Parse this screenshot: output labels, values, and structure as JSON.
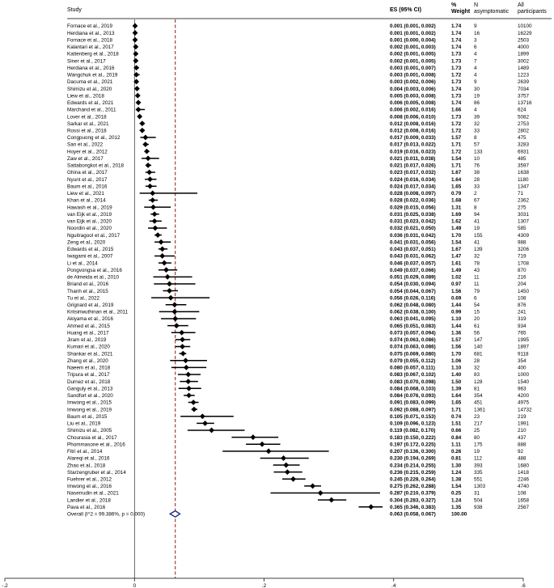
{
  "chart_data": {
    "type": "forest",
    "columns": {
      "study": "Study",
      "es": "ES (95% CI)",
      "weight": [
        "%",
        "Weight"
      ],
      "n": [
        "N",
        "asymptomatic"
      ],
      "all": [
        "All",
        "participants"
      ]
    },
    "x_axis": {
      "ticks": [
        -0.2,
        0,
        0.2,
        0.4,
        0.6
      ],
      "tick_labels": [
        "-.2",
        "0",
        ".2",
        ".4",
        ".6"
      ],
      "range": [
        -0.2,
        0.6
      ]
    },
    "reference_line": 0.063,
    "colors": {
      "marker": "#000000",
      "reference": "#8b1a1a",
      "overall": "#1f2a8a"
    },
    "studies": [
      {
        "study": "Fornace et al., 2019",
        "es": 0.001,
        "lo": 0.001,
        "hi": 0.002,
        "es_text": "0.001 (0.001, 0.002)",
        "weight": "1.74",
        "n": "9",
        "all": "10100"
      },
      {
        "study": "Herdiana et al., 2013",
        "es": 0.001,
        "lo": 0.001,
        "hi": 0.002,
        "es_text": "0.001 (0.001, 0.002)",
        "weight": "1.74",
        "n": "16",
        "all": "16229"
      },
      {
        "study": "Fornace et al., 2018",
        "es": 0.001,
        "lo": 0.0,
        "hi": 0.004,
        "es_text": "0.001 (0.000, 0.004)",
        "weight": "1.74",
        "n": "3",
        "all": "2503"
      },
      {
        "study": "Kalantari et al., 2017",
        "es": 0.002,
        "lo": 0.001,
        "hi": 0.003,
        "es_text": "0.002 (0.001, 0.003)",
        "weight": "1.74",
        "n": "6",
        "all": "4000"
      },
      {
        "study": "Kattenberg et al., 2018",
        "es": 0.002,
        "lo": 0.001,
        "hi": 0.005,
        "es_text": "0.002 (0.001, 0.005)",
        "weight": "1.73",
        "n": "4",
        "all": "1899"
      },
      {
        "study": "Siner et al., 2017",
        "es": 0.002,
        "lo": 0.001,
        "hi": 0.005,
        "es_text": "0.002 (0.001, 0.005)",
        "weight": "1.73",
        "n": "7",
        "all": "3002"
      },
      {
        "study": "Herdiana et al., 2016",
        "es": 0.003,
        "lo": 0.001,
        "hi": 0.007,
        "es_text": "0.003 (0.001, 0.007)",
        "weight": "1.73",
        "n": "4",
        "all": "1489"
      },
      {
        "study": "Wangchuk et al., 2019",
        "es": 0.003,
        "lo": 0.001,
        "hi": 0.008,
        "es_text": "0.003 (0.001, 0.008)",
        "weight": "1.72",
        "n": "4",
        "all": "1223"
      },
      {
        "study": "Dacuma et al., 2021",
        "es": 0.003,
        "lo": 0.002,
        "hi": 0.006,
        "es_text": "0.003 (0.002, 0.006)",
        "weight": "1.73",
        "n": "9",
        "all": "2639"
      },
      {
        "study": "Shimizu et al., 2020",
        "es": 0.004,
        "lo": 0.003,
        "hi": 0.006,
        "es_text": "0.004 (0.003, 0.006)",
        "weight": "1.74",
        "n": "30",
        "all": "7034"
      },
      {
        "study": "Liew et al., 2018",
        "es": 0.005,
        "lo": 0.003,
        "hi": 0.008,
        "es_text": "0.005 (0.003, 0.008)",
        "weight": "1.73",
        "n": "19",
        "all": "3757"
      },
      {
        "study": "Edwards et al., 2021",
        "es": 0.006,
        "lo": 0.005,
        "hi": 0.008,
        "es_text": "0.006 (0.005, 0.008)",
        "weight": "1.74",
        "n": "86",
        "all": "13716"
      },
      {
        "study": "Marchand et al., 2011",
        "es": 0.006,
        "lo": 0.002,
        "hi": 0.016,
        "es_text": "0.006 (0.002, 0.016)",
        "weight": "1.66",
        "n": "4",
        "all": "624"
      },
      {
        "study": "Lover et al., 2018",
        "es": 0.008,
        "lo": 0.006,
        "hi": 0.01,
        "es_text": "0.008 (0.006, 0.010)",
        "weight": "1.73",
        "n": "39",
        "all": "5082"
      },
      {
        "study": "Sarkar et al., 2021",
        "es": 0.012,
        "lo": 0.008,
        "hi": 0.016,
        "es_text": "0.012 (0.008, 0.016)",
        "weight": "1.72",
        "n": "32",
        "all": "2753"
      },
      {
        "study": "Rossi et al., 2018",
        "es": 0.012,
        "lo": 0.008,
        "hi": 0.016,
        "es_text": "0.012 (0.008, 0.016)",
        "weight": "1.72",
        "n": "33",
        "all": "2802"
      },
      {
        "study": "Congpuong et al., 2012",
        "es": 0.017,
        "lo": 0.009,
        "hi": 0.033,
        "es_text": "0.017 (0.009, 0.033)",
        "weight": "1.57",
        "n": "8",
        "all": "475"
      },
      {
        "study": "San et al., 2022",
        "es": 0.017,
        "lo": 0.013,
        "hi": 0.022,
        "es_text": "0.017 (0.013, 0.022)",
        "weight": "1.71",
        "n": "57",
        "all": "3283"
      },
      {
        "study": "Hoyer et al., 2012",
        "es": 0.019,
        "lo": 0.016,
        "hi": 0.023,
        "es_text": "0.019 (0.016, 0.023)",
        "weight": "1.72",
        "n": "133",
        "all": "6931"
      },
      {
        "study": "Zaw et al., 2017",
        "es": 0.021,
        "lo": 0.011,
        "hi": 0.038,
        "es_text": "0.021 (0.011, 0.038)",
        "weight": "1.54",
        "n": "10",
        "all": "485"
      },
      {
        "study": "Sattabongkot et al., 2018",
        "es": 0.021,
        "lo": 0.017,
        "hi": 0.026,
        "es_text": "0.021 (0.017, 0.026)",
        "weight": "1.71",
        "n": "76",
        "all": "3597"
      },
      {
        "study": "Ghina et al., 2017",
        "es": 0.023,
        "lo": 0.017,
        "hi": 0.032,
        "es_text": "0.023 (0.017, 0.032)",
        "weight": "1.67",
        "n": "38",
        "all": "1638"
      },
      {
        "study": "Nyunt et al., 2017",
        "es": 0.024,
        "lo": 0.016,
        "hi": 0.034,
        "es_text": "0.024 (0.016, 0.034)",
        "weight": "1.64",
        "n": "28",
        "all": "1180"
      },
      {
        "study": "Baum et al., 2016",
        "es": 0.024,
        "lo": 0.017,
        "hi": 0.034,
        "es_text": "0.024 (0.017, 0.034)",
        "weight": "1.65",
        "n": "33",
        "all": "1347"
      },
      {
        "study": "Liew et al., 2021",
        "es": 0.028,
        "lo": 0.008,
        "hi": 0.097,
        "es_text": "0.028 (0.008, 0.097)",
        "weight": "0.79",
        "n": "2",
        "all": "71"
      },
      {
        "study": "Khan et al., 2014",
        "es": 0.028,
        "lo": 0.022,
        "hi": 0.036,
        "es_text": "0.028 (0.022, 0.036)",
        "weight": "1.68",
        "n": "67",
        "all": "2362"
      },
      {
        "study": "Hawash et al., 2019",
        "es": 0.029,
        "lo": 0.015,
        "hi": 0.056,
        "es_text": "0.029 (0.015, 0.056)",
        "weight": "1.31",
        "n": "8",
        "all": "275"
      },
      {
        "study": "van Eijk et al., 2019",
        "es": 0.031,
        "lo": 0.025,
        "hi": 0.038,
        "es_text": "0.031 (0.025, 0.038)",
        "weight": "1.69",
        "n": "94",
        "all": "3031"
      },
      {
        "study": "van Eijk et al., 2020",
        "es": 0.031,
        "lo": 0.023,
        "hi": 0.042,
        "es_text": "0.031 (0.023, 0.042)",
        "weight": "1.62",
        "n": "41",
        "all": "1307"
      },
      {
        "study": "Noordin et al., 2020",
        "es": 0.032,
        "lo": 0.021,
        "hi": 0.05,
        "es_text": "0.032 (0.021, 0.050)",
        "weight": "1.49",
        "n": "19",
        "all": "585"
      },
      {
        "study": "Nguitragool et al., 2017",
        "es": 0.036,
        "lo": 0.031,
        "hi": 0.042,
        "es_text": "0.036 (0.031, 0.042)",
        "weight": "1.70",
        "n": "155",
        "all": "4309"
      },
      {
        "study": "Zeng et al., 2020",
        "es": 0.041,
        "lo": 0.031,
        "hi": 0.056,
        "es_text": "0.041 (0.031, 0.056)",
        "weight": "1.54",
        "n": "41",
        "all": "988"
      },
      {
        "study": "Edwards et al., 2015",
        "es": 0.043,
        "lo": 0.037,
        "hi": 0.051,
        "es_text": "0.043 (0.037, 0.051)",
        "weight": "1.67",
        "n": "139",
        "all": "3206"
      },
      {
        "study": "Iwagami et al., 2007",
        "es": 0.043,
        "lo": 0.031,
        "hi": 0.062,
        "es_text": "0.043 (0.031, 0.062)",
        "weight": "1.47",
        "n": "32",
        "all": "719"
      },
      {
        "study": "Li et al., 2014",
        "es": 0.046,
        "lo": 0.037,
        "hi": 0.057,
        "es_text": "0.046 (0.037, 0.057)",
        "weight": "1.61",
        "n": "78",
        "all": "1708"
      },
      {
        "study": "Pongvongsa et al., 2016",
        "es": 0.049,
        "lo": 0.037,
        "hi": 0.066,
        "es_text": "0.049 (0.037, 0.066)",
        "weight": "1.49",
        "n": "43",
        "all": "870"
      },
      {
        "study": "de Almeida et al., 2010",
        "es": 0.051,
        "lo": 0.029,
        "hi": 0.089,
        "es_text": "0.051 (0.029, 0.089)",
        "weight": "1.02",
        "n": "11",
        "all": "216"
      },
      {
        "study": "Briand et al., 2016",
        "es": 0.054,
        "lo": 0.03,
        "hi": 0.094,
        "es_text": "0.054 (0.030, 0.094)",
        "weight": "0.97",
        "n": "11",
        "all": "204"
      },
      {
        "study": "Thanh et al., 2015",
        "es": 0.054,
        "lo": 0.044,
        "hi": 0.067,
        "es_text": "0.054 (0.044, 0.067)",
        "weight": "1.56",
        "n": "79",
        "all": "1450"
      },
      {
        "study": "Tu et al., 2022",
        "es": 0.056,
        "lo": 0.026,
        "hi": 0.116,
        "es_text": "0.056 (0.026, 0.116)",
        "weight": "0.69",
        "n": "6",
        "all": "108"
      },
      {
        "study": "Grignard et al., 2019",
        "es": 0.062,
        "lo": 0.048,
        "hi": 0.08,
        "es_text": "0.062 (0.048, 0.080)",
        "weight": "1.44",
        "n": "54",
        "all": "876"
      },
      {
        "study": "Kritsiriwuthinan et al., 2011",
        "es": 0.062,
        "lo": 0.038,
        "hi": 0.1,
        "es_text": "0.062 (0.038, 0.100)",
        "weight": "0.99",
        "n": "15",
        "all": "241"
      },
      {
        "study": "Akiyama et al., 2016",
        "es": 0.063,
        "lo": 0.041,
        "hi": 0.095,
        "es_text": "0.063 (0.041, 0.095)",
        "weight": "1.10",
        "n": "20",
        "all": "319"
      },
      {
        "study": "Ahmed et al., 2015",
        "es": 0.065,
        "lo": 0.051,
        "hi": 0.083,
        "es_text": "0.065 (0.051, 0.083)",
        "weight": "1.44",
        "n": "61",
        "all": "934"
      },
      {
        "study": "Huang et al., 2017",
        "es": 0.073,
        "lo": 0.057,
        "hi": 0.094,
        "es_text": "0.073 (0.057, 0.094)",
        "weight": "1.36",
        "n": "56",
        "all": "765"
      },
      {
        "study": "Jiram et al., 2019",
        "es": 0.074,
        "lo": 0.063,
        "hi": 0.086,
        "es_text": "0.074 (0.063, 0.086)",
        "weight": "1.57",
        "n": "147",
        "all": "1995"
      },
      {
        "study": "Kumari et al., 2020",
        "es": 0.074,
        "lo": 0.063,
        "hi": 0.086,
        "es_text": "0.074 (0.063, 0.086)",
        "weight": "1.56",
        "n": "140",
        "all": "1897"
      },
      {
        "study": "Shankar et al., 2021",
        "es": 0.075,
        "lo": 0.069,
        "hi": 0.08,
        "es_text": "0.075 (0.069, 0.080)",
        "weight": "1.70",
        "n": "681",
        "all": "9118"
      },
      {
        "study": "Zhang et al., 2020",
        "es": 0.079,
        "lo": 0.055,
        "hi": 0.112,
        "es_text": "0.079 (0.055, 0.112)",
        "weight": "1.06",
        "n": "28",
        "all": "354"
      },
      {
        "study": "Naeem et al., 2018",
        "es": 0.08,
        "lo": 0.057,
        "hi": 0.111,
        "es_text": "0.080 (0.057, 0.111)",
        "weight": "1.10",
        "n": "32",
        "all": "400"
      },
      {
        "study": "Tripura et al., 2017",
        "es": 0.083,
        "lo": 0.067,
        "hi": 0.102,
        "es_text": "0.083 (0.067, 0.102)",
        "weight": "1.40",
        "n": "83",
        "all": "1000"
      },
      {
        "study": "Durnez et al., 2018",
        "es": 0.083,
        "lo": 0.07,
        "hi": 0.098,
        "es_text": "0.083 (0.070, 0.098)",
        "weight": "1.50",
        "n": "128",
        "all": "1540"
      },
      {
        "study": "Ganguly et al., 2013",
        "es": 0.084,
        "lo": 0.068,
        "hi": 0.103,
        "es_text": "0.084 (0.068, 0.103)",
        "weight": "1.39",
        "n": "81",
        "all": "963"
      },
      {
        "study": "Sandfort et al., 2020",
        "es": 0.084,
        "lo": 0.076,
        "hi": 0.093,
        "es_text": "0.084 (0.076, 0.093)",
        "weight": "1.64",
        "n": "354",
        "all": "4200"
      },
      {
        "study": "Imwong et al., 2015",
        "es": 0.091,
        "lo": 0.083,
        "hi": 0.099,
        "es_text": "0.091 (0.083, 0.099)",
        "weight": "1.65",
        "n": "451",
        "all": "4975"
      },
      {
        "study": "Imwong et al., 2019",
        "es": 0.092,
        "lo": 0.088,
        "hi": 0.097,
        "es_text": "0.092 (0.088, 0.097)",
        "weight": "1.71",
        "n": "1361",
        "all": "14732"
      },
      {
        "study": "Baum et al., 2015",
        "es": 0.105,
        "lo": 0.071,
        "hi": 0.153,
        "es_text": "0.105 (0.071, 0.153)",
        "weight": "0.74",
        "n": "23",
        "all": "219"
      },
      {
        "study": "Liu et al., 2019",
        "es": 0.109,
        "lo": 0.096,
        "hi": 0.123,
        "es_text": "0.109 (0.096, 0.123)",
        "weight": "1.51",
        "n": "217",
        "all": "1991"
      },
      {
        "study": "Shimizu et al., 2005",
        "es": 0.119,
        "lo": 0.082,
        "hi": 0.17,
        "es_text": "0.119 (0.082, 0.170)",
        "weight": "0.66",
        "n": "25",
        "all": "210"
      },
      {
        "study": "Chourasia et al., 2017",
        "es": 0.183,
        "lo": 0.15,
        "hi": 0.222,
        "es_text": "0.183 (0.150, 0.222)",
        "weight": "0.84",
        "n": "80",
        "all": "437"
      },
      {
        "study": "Phommasone et al., 2016",
        "es": 0.197,
        "lo": 0.172,
        "hi": 0.225,
        "es_text": "0.197 (0.172, 0.225)",
        "weight": "1.11",
        "n": "175",
        "all": "888"
      },
      {
        "study": "Fitri et al., 2014",
        "es": 0.207,
        "lo": 0.136,
        "hi": 0.3,
        "es_text": "0.207 (0.136, 0.300)",
        "weight": "0.26",
        "n": "19",
        "all": "92"
      },
      {
        "study": "Alareqi et al., 2016",
        "es": 0.23,
        "lo": 0.194,
        "hi": 0.269,
        "es_text": "0.230 (0.194, 0.269)",
        "weight": "0.81",
        "n": "112",
        "all": "488"
      },
      {
        "study": "Zhao et al., 2018",
        "es": 0.234,
        "lo": 0.214,
        "hi": 0.255,
        "es_text": "0.234 (0.214, 0.255)",
        "weight": "1.30",
        "n": "393",
        "all": "1680"
      },
      {
        "study": "Starzengruber et al., 2014",
        "es": 0.236,
        "lo": 0.215,
        "hi": 0.259,
        "es_text": "0.236 (0.215, 0.259)",
        "weight": "1.24",
        "n": "335",
        "all": "1418"
      },
      {
        "study": "Fuehrer et al., 2012",
        "es": 0.245,
        "lo": 0.228,
        "hi": 0.264,
        "es_text": "0.245 (0.228, 0.264)",
        "weight": "1.38",
        "n": "551",
        "all": "2246"
      },
      {
        "study": "Imwong et al., 2016",
        "es": 0.275,
        "lo": 0.262,
        "hi": 0.288,
        "es_text": "0.275 (0.262, 0.288)",
        "weight": "1.54",
        "n": "1303",
        "all": "4740"
      },
      {
        "study": "Naserrudin et al., 2021",
        "es": 0.287,
        "lo": 0.21,
        "hi": 0.379,
        "es_text": "0.287 (0.210, 0.379)",
        "weight": "0.25",
        "n": "31",
        "all": "108"
      },
      {
        "study": "Landier et al., 2018",
        "es": 0.304,
        "lo": 0.283,
        "hi": 0.327,
        "es_text": "0.304 (0.283, 0.327)",
        "weight": "1.24",
        "n": "504",
        "all": "1658"
      },
      {
        "study": "Pava et al., 2016",
        "es": 0.365,
        "lo": 0.346,
        "hi": 0.383,
        "es_text": "0.365 (0.346, 0.383)",
        "weight": "1.35",
        "n": "938",
        "all": "2567"
      }
    ],
    "overall": {
      "label": "Overall  (I^2 = 99.386%, p = 0.000)",
      "es": 0.063,
      "lo": 0.058,
      "hi": 0.067,
      "es_text": "0.063 (0.058, 0.067)",
      "weight": "100.00"
    }
  }
}
